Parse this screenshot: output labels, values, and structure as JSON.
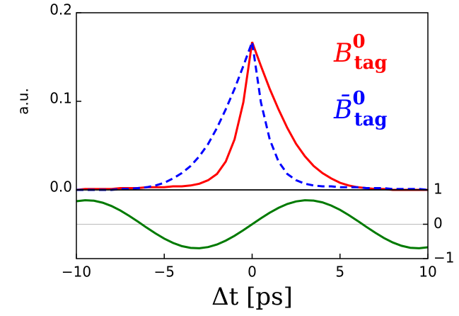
{
  "chart_data": [
    {
      "type": "line",
      "ylabel": "a.u.",
      "x": [
        -10,
        -9.5,
        -9,
        -8.5,
        -8,
        -7.5,
        -7,
        -6.5,
        -6,
        -5.5,
        -5,
        -4.5,
        -4,
        -3.5,
        -3,
        -2.5,
        -2,
        -1.5,
        -1,
        -0.5,
        0,
        0.5,
        1,
        1.5,
        2,
        2.5,
        3,
        3.5,
        4,
        4.5,
        5,
        5.5,
        6,
        6.5,
        7,
        7.5,
        8,
        8.5,
        9,
        9.5,
        10
      ],
      "series": [
        {
          "name": "B",
          "name_sup": "0",
          "name_sub": "tag",
          "color": "#ff0000",
          "dash": false,
          "values": [
            0,
            0.001,
            0.001,
            0.001,
            0.001,
            0.002,
            0.002,
            0.002,
            0.003,
            0.003,
            0.003,
            0.004,
            0.004,
            0.005,
            0.007,
            0.011,
            0.018,
            0.032,
            0.057,
            0.099,
            0.167,
            0.14,
            0.114,
            0.091,
            0.07,
            0.052,
            0.038,
            0.027,
            0.019,
            0.013,
            0.008,
            0.005,
            0.003,
            0.002,
            0.001,
            0.001,
            0,
            0,
            0,
            0,
            0
          ]
        },
        {
          "name": "B̄",
          "name_sup": "0",
          "name_sub": "tag",
          "color": "#0000ff",
          "dash": true,
          "values": [
            0,
            0,
            0,
            0,
            0,
            0.001,
            0.001,
            0.002,
            0.003,
            0.005,
            0.008,
            0.013,
            0.019,
            0.027,
            0.038,
            0.052,
            0.07,
            0.091,
            0.114,
            0.14,
            0.167,
            0.099,
            0.057,
            0.032,
            0.018,
            0.011,
            0.007,
            0.005,
            0.004,
            0.004,
            0.003,
            0.003,
            0.003,
            0.002,
            0.002,
            0.002,
            0.001,
            0.001,
            0.001,
            0.001,
            0
          ]
        }
      ],
      "xlim": [
        -10,
        10
      ],
      "ylim": [
        0,
        0.2
      ],
      "yticks": [
        {
          "value": 0,
          "label": "0.0"
        },
        0.1,
        0.2
      ]
    },
    {
      "type": "line",
      "xlabel": "Δt [ps]",
      "x": [
        -10,
        -9.5,
        -9,
        -8.5,
        -8,
        -7.5,
        -7,
        -6.5,
        -6,
        -5.5,
        -5,
        -4.5,
        -4,
        -3.5,
        -3,
        -2.5,
        -2,
        -1.5,
        -1,
        -0.5,
        0,
        0.5,
        1,
        1.5,
        2,
        2.5,
        3,
        3.5,
        4,
        4.5,
        5,
        5.5,
        6,
        6.5,
        7,
        7.5,
        8,
        8.5,
        9,
        9.5,
        10
      ],
      "series": [
        {
          "color": "#007a00",
          "dash": false,
          "axis": "y2",
          "values": [
            0.671,
            0.7,
            0.684,
            0.627,
            0.53,
            0.4,
            0.246,
            0.076,
            -0.099,
            -0.267,
            -0.419,
            -0.545,
            -0.637,
            -0.689,
            -0.698,
            -0.664,
            -0.589,
            -0.477,
            -0.336,
            -0.173,
            0,
            0.173,
            0.336,
            0.477,
            0.589,
            0.664,
            0.698,
            0.689,
            0.637,
            0.545,
            0.419,
            0.267,
            0.099,
            -0.076,
            -0.246,
            -0.4,
            -0.53,
            -0.627,
            -0.684,
            -0.7,
            -0.671
          ]
        }
      ],
      "hline": 0,
      "hline_color": "#bbbbbb",
      "xlim": [
        -10,
        10
      ],
      "y2lim": [
        -1,
        1
      ],
      "xticks": [
        {
          "value": -10,
          "label": "−10"
        },
        {
          "value": -5,
          "label": "−5"
        },
        0,
        5,
        10
      ],
      "y2ticks": [
        {
          "value": -1,
          "label": "−1"
        },
        0,
        1
      ]
    }
  ]
}
